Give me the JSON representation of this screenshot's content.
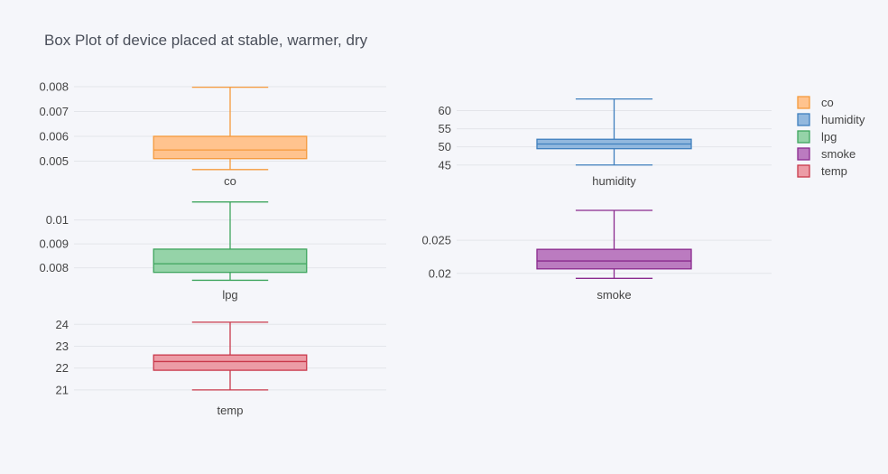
{
  "chart_data": {
    "type": "box",
    "title": "Box Plot of device placed at stable, warmer, dry",
    "legend": {
      "placement": "top-right",
      "entries": [
        "co",
        "humidity",
        "lpg",
        "smoke",
        "temp"
      ]
    },
    "subplots": [
      {
        "name": "co",
        "color": "#f59a3c",
        "fill": "#ffc38e",
        "ticks": [
          "0.005",
          "0.006",
          "0.007",
          "0.008"
        ],
        "tick_values": [
          0.005,
          0.006,
          0.007,
          0.008
        ],
        "ylim": [
          0.00458,
          0.00822
        ],
        "box": {
          "min": 0.00466,
          "q1": 0.0051,
          "median": 0.00545,
          "q3": 0.006,
          "max": 0.00798
        }
      },
      {
        "name": "humidity",
        "color": "#3f7fbe",
        "fill": "#92b8de",
        "ticks": [
          "45",
          "50",
          "55",
          "60"
        ],
        "tick_values": [
          45,
          50,
          55,
          60
        ],
        "ylim": [
          43.2,
          65.6
        ],
        "box": {
          "min": 45.0,
          "q1": 49.5,
          "median": 50.8,
          "q3": 52.1,
          "max": 63.2
        }
      },
      {
        "name": "lpg",
        "color": "#3ea55e",
        "fill": "#95d3a8",
        "ticks": [
          "0.008",
          "0.009",
          "0.01"
        ],
        "tick_values": [
          0.008,
          0.009,
          0.01
        ],
        "ylim": [
          0.00727,
          0.0107
        ],
        "box": {
          "min": 0.00748,
          "q1": 0.00781,
          "median": 0.00817,
          "q3": 0.00878,
          "max": 0.01075
        }
      },
      {
        "name": "smoke",
        "color": "#8a2a8e",
        "fill": "#bb7bc0",
        "ticks": [
          "0.02",
          "0.025"
        ],
        "tick_values": [
          0.02,
          0.025
        ],
        "ylim": [
          0.0182,
          0.0306
        ],
        "box": {
          "min": 0.01925,
          "q1": 0.02068,
          "median": 0.02187,
          "q3": 0.02363,
          "max": 0.02951
        }
      },
      {
        "name": "temp",
        "color": "#c9394b",
        "fill": "#ec9ca6",
        "ticks": [
          "21",
          "22",
          "23",
          "24"
        ],
        "tick_values": [
          21,
          22,
          23,
          24
        ],
        "ylim": [
          20.5,
          24.3
        ],
        "box": {
          "min": 21.0,
          "q1": 21.9,
          "median": 22.3,
          "q3": 22.6,
          "max": 24.1
        }
      }
    ]
  }
}
